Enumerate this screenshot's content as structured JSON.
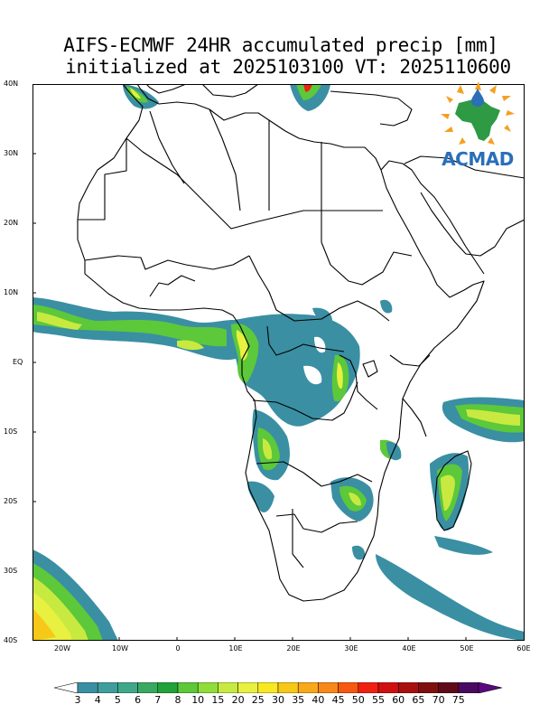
{
  "title": {
    "line1": "AIFS-ECMWF 24HR accumulated precip [mm]",
    "line2": "initialized at 2025103100 VT: 2025110600"
  },
  "axes": {
    "lat_labels": [
      "40N",
      "30N",
      "20N",
      "10N",
      "EQ",
      "10S",
      "20S",
      "30S",
      "40S"
    ],
    "lon_labels": [
      "20W",
      "10W",
      "0",
      "10E",
      "20E",
      "30E",
      "40E",
      "50E",
      "60E"
    ]
  },
  "colorbar": {
    "labels": [
      "3",
      "4",
      "5",
      "6",
      "7",
      "8",
      "10",
      "15",
      "20",
      "25",
      "30",
      "35",
      "40",
      "45",
      "50",
      "55",
      "60",
      "65",
      "70",
      "75"
    ],
    "colors": [
      "#3a8fa3",
      "#3f9e9c",
      "#40a88a",
      "#3aa860",
      "#22a23a",
      "#5cc83a",
      "#90dd3a",
      "#c8ea40",
      "#e8f040",
      "#f8e820",
      "#f8c818",
      "#f8a818",
      "#f88818",
      "#f85810",
      "#f02010",
      "#d01010",
      "#a81010",
      "#801010",
      "#600a18",
      "#4a0a60"
    ],
    "under_color": "#ffffff",
    "over_color": "#5a0a80"
  },
  "logo": {
    "name": "ACMAD"
  },
  "colors": {
    "land_border": "#000000",
    "background": "#ffffff"
  }
}
